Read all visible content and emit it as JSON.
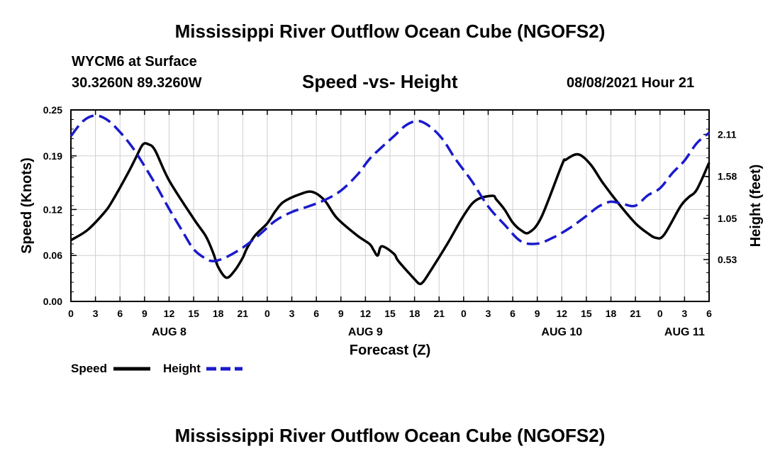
{
  "header": {
    "title_top": "Mississippi River Outflow Ocean Cube (NGOFS2)",
    "station": "WYCM6 at Surface",
    "coords": "30.3260N  89.3260W",
    "subtitle": "Speed -vs- Height",
    "datetime": "08/08/2021 Hour 21",
    "title_bottom": "Mississippi River Outflow Ocean Cube (NGOFS2)"
  },
  "colors": {
    "speed": "#000000",
    "height": "#1a1acc"
  },
  "chart_data": {
    "type": "line",
    "title": "Speed -vs- Height",
    "xlabel": "Forecast (Z)",
    "ylabel_left": "Speed (Knots)",
    "ylabel_right": "Height (feet)",
    "x_hours": [
      0,
      78
    ],
    "x_ticks_hours": [
      0,
      3,
      6,
      9,
      12,
      15,
      18,
      21,
      24,
      27,
      30,
      33,
      36,
      39,
      42,
      45,
      48,
      51,
      54,
      57,
      60,
      63,
      66,
      69,
      72,
      75,
      78
    ],
    "x_tick_labels": [
      "0",
      "3",
      "6",
      "9",
      "12",
      "15",
      "18",
      "21",
      "0",
      "3",
      "6",
      "9",
      "12",
      "15",
      "18",
      "21",
      "0",
      "3",
      "6",
      "9",
      "12",
      "15",
      "18",
      "21",
      "0",
      "3",
      "6"
    ],
    "date_labels": [
      {
        "text": "AUG 8",
        "hour": 12
      },
      {
        "text": "AUG 9",
        "hour": 36
      },
      {
        "text": "AUG 10",
        "hour": 60
      },
      {
        "text": "AUG 11",
        "hour": 75
      }
    ],
    "y_left": {
      "range": [
        0,
        0.25
      ],
      "ticks": [
        0.0,
        0.06,
        0.12,
        0.19,
        0.25
      ],
      "tick_labels": [
        "0.00",
        "0.06",
        "0.12",
        "0.19",
        "0.25"
      ]
    },
    "y_right": {
      "range": [
        0.0,
        2.42
      ],
      "ticks": [
        0.53,
        1.05,
        1.58,
        2.11
      ],
      "tick_labels": [
        "0.53",
        "1.05",
        "1.58",
        "2.11"
      ]
    },
    "legend": {
      "position": "bottom-left",
      "entries": [
        "Speed",
        "Height"
      ]
    },
    "series": [
      {
        "name": "Speed",
        "axis": "left",
        "style": "solid",
        "x": [
          0,
          2,
          4,
          5,
          7,
          8,
          8.8,
          9.5,
          10.3,
          12,
          15,
          16.5,
          17.4,
          18,
          19,
          20,
          21,
          21.5,
          22.5,
          24,
          25,
          26,
          28,
          29.5,
          31,
          32.5,
          35,
          36.5,
          37,
          37.5,
          38,
          39.5,
          40,
          42,
          42.6,
          43,
          43.6,
          46,
          48,
          49.5,
          51.5,
          52,
          53,
          54,
          55,
          56,
          57.5,
          60,
          60.5,
          62,
          63.5,
          65,
          67,
          69,
          70.5,
          71.5,
          72.5,
          74.5,
          75.5,
          76.5,
          78
        ],
        "values": [
          0.08,
          0.093,
          0.115,
          0.13,
          0.168,
          0.189,
          0.205,
          0.205,
          0.197,
          0.158,
          0.108,
          0.085,
          0.063,
          0.045,
          0.031,
          0.04,
          0.057,
          0.069,
          0.086,
          0.102,
          0.118,
          0.13,
          0.14,
          0.143,
          0.132,
          0.109,
          0.086,
          0.075,
          0.067,
          0.06,
          0.072,
          0.062,
          0.053,
          0.029,
          0.023,
          0.025,
          0.034,
          0.075,
          0.112,
          0.132,
          0.138,
          0.133,
          0.12,
          0.103,
          0.093,
          0.09,
          0.11,
          0.178,
          0.185,
          0.192,
          0.179,
          0.155,
          0.127,
          0.102,
          0.089,
          0.083,
          0.087,
          0.124,
          0.136,
          0.146,
          0.181
        ]
      },
      {
        "name": "Height",
        "axis": "right",
        "style": "dashed",
        "x": [
          0,
          1.5,
          3,
          4.5,
          6,
          7.5,
          9,
          10.5,
          12,
          13.5,
          15,
          16.5,
          17.5,
          19,
          21,
          23,
          25,
          27,
          29,
          31,
          33,
          35,
          36.5,
          38,
          39.5,
          41,
          42.5,
          44,
          45.5,
          47,
          49,
          51,
          53,
          55,
          57,
          59,
          61,
          63,
          64.5,
          66,
          67.5,
          69,
          70.5,
          72,
          73.5,
          75,
          76.5,
          78
        ],
        "values": [
          2.09,
          2.28,
          2.35,
          2.29,
          2.14,
          1.95,
          1.71,
          1.45,
          1.17,
          0.91,
          0.66,
          0.54,
          0.51,
          0.56,
          0.68,
          0.84,
          1.02,
          1.13,
          1.2,
          1.28,
          1.4,
          1.6,
          1.8,
          1.95,
          2.09,
          2.23,
          2.28,
          2.2,
          2.04,
          1.8,
          1.52,
          1.2,
          0.97,
          0.76,
          0.73,
          0.81,
          0.93,
          1.08,
          1.2,
          1.26,
          1.23,
          1.21,
          1.34,
          1.43,
          1.62,
          1.78,
          2.0,
          2.13
        ]
      }
    ]
  }
}
